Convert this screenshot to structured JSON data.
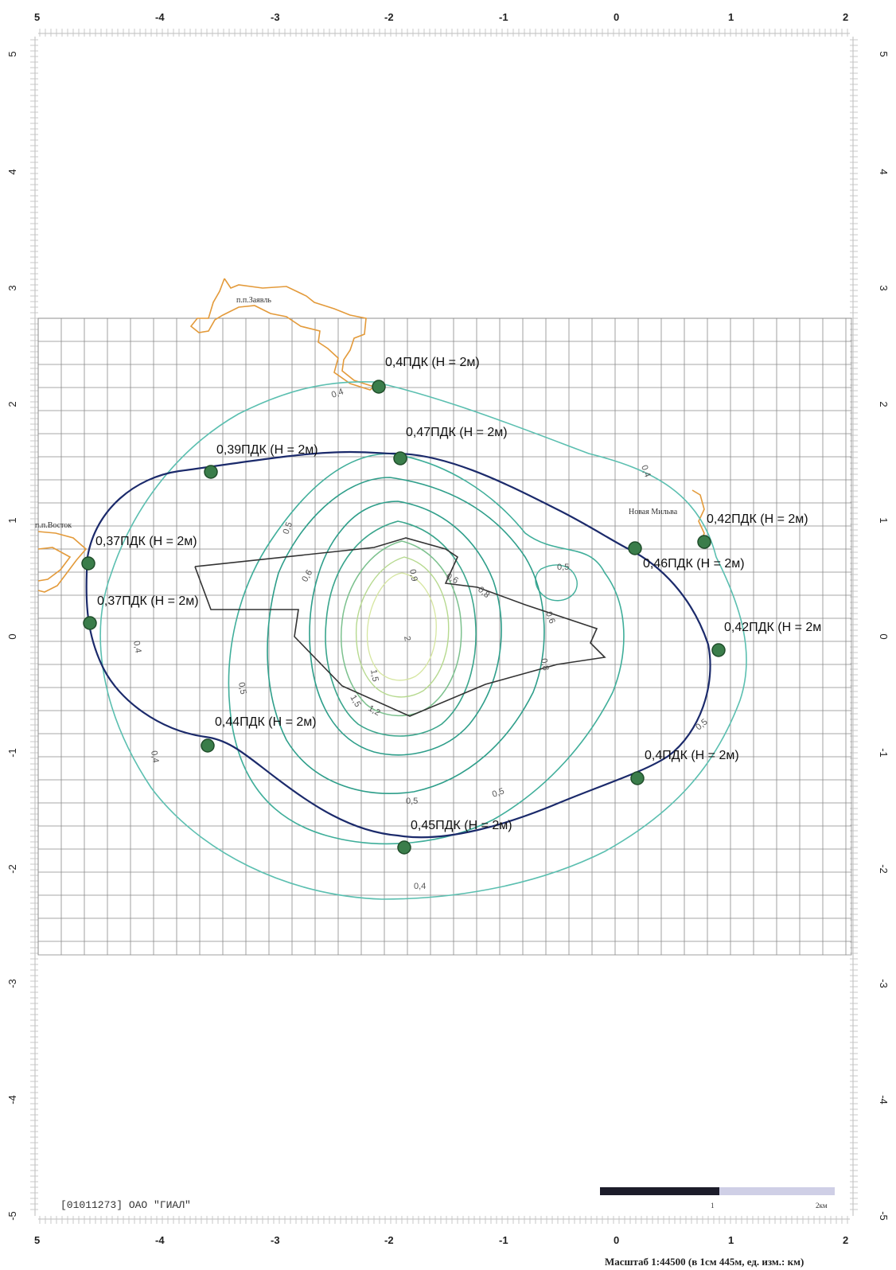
{
  "map": {
    "x_ticks": [
      "5",
      "-4",
      "-3",
      "-2",
      "-1",
      "0",
      "1",
      "2"
    ],
    "y_ticks": [
      "5",
      "4",
      "3",
      "2",
      "1",
      "0",
      "-1",
      "-2",
      "-3",
      "-4",
      "-5"
    ],
    "settlements": [
      {
        "name": "п.п.Заявль"
      },
      {
        "name": "п.п.Восток"
      },
      {
        "name": "Новая Мильва"
      }
    ],
    "points": [
      {
        "label": "0,4ПДК (Н = 2м)"
      },
      {
        "label": "0,47ПДК (Н = 2м)"
      },
      {
        "label": "0,39ПДК (Н = 2м)"
      },
      {
        "label": "0,37ПДК (Н = 2м)"
      },
      {
        "label": "0,37ПДК (Н = 2м)"
      },
      {
        "label": "0,42ПДК (Н = 2м)"
      },
      {
        "label": "0,46ПДК (Н = 2м)"
      },
      {
        "label": "0,42ПДК (Н = 2м"
      },
      {
        "label": "0,44ПДК (Н = 2м)"
      },
      {
        "label": "0,4ПДК (Н = 2м)"
      },
      {
        "label": "0,45ПДК (Н = 2м)"
      }
    ],
    "contour_labels": [
      "0,4",
      "0,4",
      "0,5",
      "0,5",
      "0,4",
      "0,5",
      "0,6",
      "0,6",
      "0,8",
      "0,8",
      "0,9",
      "0,6",
      "1,5",
      "1,5",
      "2",
      "1,2",
      "0,4",
      "0,5",
      "0,5",
      "0,4",
      "0,5"
    ],
    "colors": {
      "grid": "#8a8a8a",
      "contour_outer": "#5bbfb0",
      "contour_inner": "#2e9e8a",
      "contour_core": "#d6e6a0",
      "sanitary_zone": "#1b2a6b",
      "settlement": "#e39a3a",
      "enterprise": "#333333",
      "point_fill": "#3a7d4a"
    },
    "footer": "[01011273] ОАО \"ГИАЛ\"",
    "scale_text": "Масштаб 1:44500 (в 1см 445м, ед. изм.: км)",
    "scalebar": {
      "mid_label": "1",
      "end_label": "2км"
    }
  }
}
